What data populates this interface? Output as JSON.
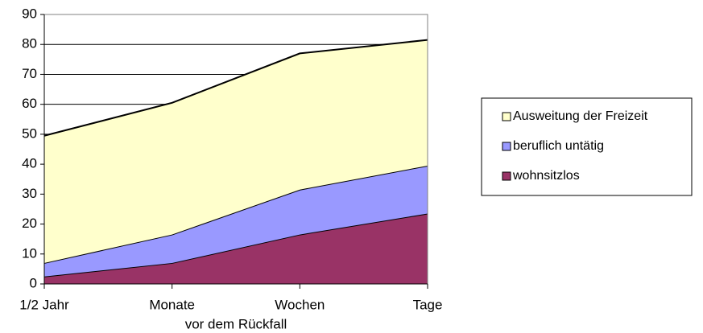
{
  "chart_data": {
    "type": "stacked_area",
    "x_label": "vor dem Rückfall",
    "categories": [
      "1/2 Jahr",
      "Monate",
      "Wochen",
      "Tage"
    ],
    "series": [
      {
        "name": "wohnsitzlos",
        "color": "#993366",
        "values": [
          2.5,
          7,
          16.5,
          23.5
        ]
      },
      {
        "name": "beruflich untätig",
        "color": "#9999ff",
        "values": [
          4.5,
          9.5,
          15,
          16
        ]
      },
      {
        "name": "Ausweitung der Freizeit",
        "color": "#ffffcc",
        "values": [
          42.5,
          44,
          45.5,
          42
        ]
      }
    ],
    "ylim": [
      0,
      90
    ],
    "yticks": [
      0,
      10,
      20,
      30,
      40,
      50,
      60,
      70,
      80,
      90
    ],
    "grid": true
  }
}
